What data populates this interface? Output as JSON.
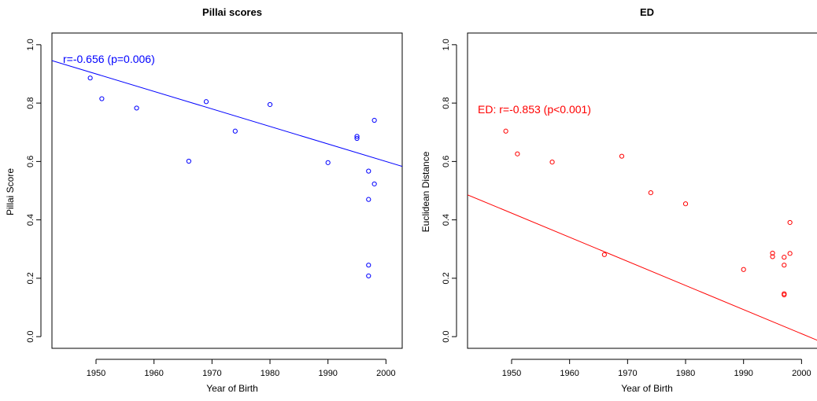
{
  "chart_data": [
    {
      "type": "scatter",
      "title": "Pillai scores",
      "xlabel": "Year of Birth",
      "ylabel": "Pillai Score",
      "xlim": [
        1942.4,
        2002.8
      ],
      "ylim": [
        -0.04,
        1.04
      ],
      "x_ticks": [
        1950,
        1960,
        1970,
        1980,
        1990,
        2000
      ],
      "y_ticks": [
        "0.0",
        "0.2",
        "0.4",
        "0.6",
        "0.8",
        "1.0"
      ],
      "color": "#0000ff",
      "annotation": "r=-0.656 (p=0.006)",
      "regression_line": {
        "intercept": 12.6,
        "slope": -0.006
      },
      "points": [
        {
          "x": 1949,
          "y": 0.886
        },
        {
          "x": 1951,
          "y": 0.815
        },
        {
          "x": 1957,
          "y": 0.783
        },
        {
          "x": 1966,
          "y": 0.601
        },
        {
          "x": 1969,
          "y": 0.805
        },
        {
          "x": 1974,
          "y": 0.704
        },
        {
          "x": 1980,
          "y": 0.795
        },
        {
          "x": 1990,
          "y": 0.596
        },
        {
          "x": 1995,
          "y": 0.686
        },
        {
          "x": 1995,
          "y": 0.679
        },
        {
          "x": 1997,
          "y": 0.567
        },
        {
          "x": 1997,
          "y": 0.47
        },
        {
          "x": 1997,
          "y": 0.245
        },
        {
          "x": 1997,
          "y": 0.208
        },
        {
          "x": 1998,
          "y": 0.741
        },
        {
          "x": 1998,
          "y": 0.523
        }
      ]
    },
    {
      "type": "scatter",
      "title": "ED",
      "xlabel": "Year of Birth",
      "ylabel": "Euclidean Distance",
      "xlim": [
        1942.4,
        2002.8
      ],
      "ylim": [
        -0.04,
        1.04
      ],
      "x_ticks": [
        1950,
        1960,
        1970,
        1980,
        1990,
        2000
      ],
      "y_ticks": [
        "0.0",
        "0.2",
        "0.4",
        "0.6",
        "0.8",
        "1.0"
      ],
      "color": "#ff0000",
      "annotation": "ED: r=-0.853 (p<0.001)",
      "regression_line": {
        "intercept": 16.53,
        "slope": -0.00826
      },
      "points": [
        {
          "x": 1949,
          "y": 0.704
        },
        {
          "x": 1951,
          "y": 0.626
        },
        {
          "x": 1957,
          "y": 0.598
        },
        {
          "x": 1966,
          "y": 0.281
        },
        {
          "x": 1969,
          "y": 0.618
        },
        {
          "x": 1974,
          "y": 0.493
        },
        {
          "x": 1980,
          "y": 0.455
        },
        {
          "x": 1990,
          "y": 0.23
        },
        {
          "x": 1995,
          "y": 0.286
        },
        {
          "x": 1995,
          "y": 0.274
        },
        {
          "x": 1997,
          "y": 0.272
        },
        {
          "x": 1997,
          "y": 0.245
        },
        {
          "x": 1997,
          "y": 0.147
        },
        {
          "x": 1997,
          "y": 0.143
        },
        {
          "x": 1998,
          "y": 0.391
        },
        {
          "x": 1998,
          "y": 0.285
        }
      ]
    }
  ]
}
